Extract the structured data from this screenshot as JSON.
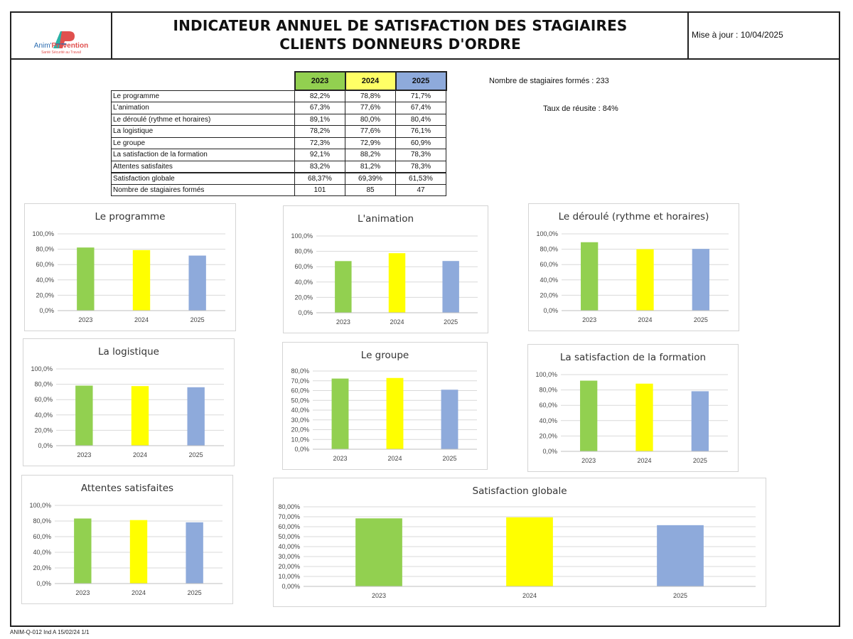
{
  "header": {
    "logo": {
      "brand": "Anim'",
      "brand_accent": "Prévention",
      "tagline": "Santé Sécurité au Travail"
    },
    "title_line1": "INDICATEUR ANNUEL DE SATISFACTION DES STAGIAIRES",
    "title_line2": "CLIENTS DONNEURS D'ORDRE",
    "update_label": "Mise à jour : 10/04/2025"
  },
  "summary": {
    "headers": [
      "2023",
      "2024",
      "2025"
    ],
    "header_colors": [
      "#92d050",
      "#ffff66",
      "#8eaadb"
    ],
    "rows": [
      {
        "label": "Le programme",
        "values": [
          "82,2%",
          "78,8%",
          "71,7%"
        ]
      },
      {
        "label": "L'animation",
        "values": [
          "67,3%",
          "77,6%",
          "67,4%"
        ]
      },
      {
        "label": "Le déroulé (rythme et horaires)",
        "values": [
          "89,1%",
          "80,0%",
          "80,4%"
        ]
      },
      {
        "label": "La logistique",
        "values": [
          "78,2%",
          "77,6%",
          "76,1%"
        ]
      },
      {
        "label": "Le groupe",
        "values": [
          "72,3%",
          "72,9%",
          "60,9%"
        ]
      },
      {
        "label": "La satisfaction de la  formation",
        "values": [
          "92,1%",
          "88,2%",
          "78,3%"
        ]
      },
      {
        "label": "Attentes satisfaites",
        "values": [
          "83,2%",
          "81,2%",
          "78,3%"
        ]
      },
      {
        "label": "Satisfaction globale",
        "values": [
          "68,37%",
          "69,39%",
          "61,53%"
        ]
      },
      {
        "label": "Nombre de stagiaires formés",
        "values": [
          "101",
          "85",
          "47"
        ]
      }
    ]
  },
  "stats": {
    "trained_label": "Nombre de stagiaires formés :",
    "trained_value": "233",
    "success_label": "Taux de réusite :",
    "success_value": "84%"
  },
  "footer": {
    "reference": "ANIM-Q-012 Ind A 15/02/24 1/1"
  },
  "chart_data": [
    {
      "type": "bar",
      "title": "Le programme",
      "categories": [
        "2023",
        "2024",
        "2025"
      ],
      "values": [
        82.2,
        78.8,
        71.7
      ],
      "colors": [
        "#92d050",
        "#ffff00",
        "#8eaadb"
      ],
      "ylim": [
        0,
        100
      ],
      "yticks": [
        "0,0%",
        "20,0%",
        "40,0%",
        "60,0%",
        "80,0%",
        "100,0%"
      ],
      "grid": true
    },
    {
      "type": "bar",
      "title": "L'animation",
      "categories": [
        "2023",
        "2024",
        "2025"
      ],
      "values": [
        67.3,
        77.6,
        67.4
      ],
      "colors": [
        "#92d050",
        "#ffff00",
        "#8eaadb"
      ],
      "ylim": [
        0,
        100
      ],
      "yticks": [
        "0,0%",
        "20,0%",
        "40,0%",
        "60,0%",
        "80,0%",
        "100,0%"
      ],
      "grid": true
    },
    {
      "type": "bar",
      "title": "Le déroulé (rythme et horaires)",
      "categories": [
        "2023",
        "2024",
        "2025"
      ],
      "values": [
        89.1,
        80.0,
        80.4
      ],
      "colors": [
        "#92d050",
        "#ffff00",
        "#8eaadb"
      ],
      "ylim": [
        0,
        100
      ],
      "yticks": [
        "0,0%",
        "20,0%",
        "40,0%",
        "60,0%",
        "80,0%",
        "100,0%"
      ],
      "grid": true
    },
    {
      "type": "bar",
      "title": "La logistique",
      "categories": [
        "2023",
        "2024",
        "2025"
      ],
      "values": [
        78.2,
        77.6,
        76.1
      ],
      "colors": [
        "#92d050",
        "#ffff00",
        "#8eaadb"
      ],
      "ylim": [
        0,
        100
      ],
      "yticks": [
        "0,0%",
        "20,0%",
        "40,0%",
        "60,0%",
        "80,0%",
        "100,0%"
      ],
      "grid": true
    },
    {
      "type": "bar",
      "title": "Le groupe",
      "categories": [
        "2023",
        "2024",
        "2025"
      ],
      "values": [
        72.3,
        72.9,
        60.9
      ],
      "colors": [
        "#92d050",
        "#ffff00",
        "#8eaadb"
      ],
      "ylim": [
        0,
        80
      ],
      "yticks": [
        "0,0%",
        "10,0%",
        "20,0%",
        "30,0%",
        "40,0%",
        "50,0%",
        "60,0%",
        "70,0%",
        "80,0%"
      ],
      "grid": true
    },
    {
      "type": "bar",
      "title": "La satisfaction de la  formation",
      "categories": [
        "2023",
        "2024",
        "2025"
      ],
      "values": [
        92.1,
        88.2,
        78.3
      ],
      "colors": [
        "#92d050",
        "#ffff00",
        "#8eaadb"
      ],
      "ylim": [
        0,
        100
      ],
      "yticks": [
        "0,0%",
        "20,0%",
        "40,0%",
        "60,0%",
        "80,0%",
        "100,0%"
      ],
      "grid": true
    },
    {
      "type": "bar",
      "title": "Attentes satisfaites",
      "categories": [
        "2023",
        "2024",
        "2025"
      ],
      "values": [
        83.2,
        81.2,
        78.3
      ],
      "colors": [
        "#92d050",
        "#ffff00",
        "#8eaadb"
      ],
      "ylim": [
        0,
        100
      ],
      "yticks": [
        "0,0%",
        "20,0%",
        "40,0%",
        "60,0%",
        "80,0%",
        "100,0%"
      ],
      "grid": true
    },
    {
      "type": "bar",
      "title": "Satisfaction globale",
      "categories": [
        "2023",
        "2024",
        "2025"
      ],
      "values": [
        68.37,
        69.39,
        61.53
      ],
      "colors": [
        "#92d050",
        "#ffff00",
        "#8eaadb"
      ],
      "ylim": [
        0,
        80
      ],
      "yticks": [
        "0,00%",
        "10,00%",
        "20,00%",
        "30,00%",
        "40,00%",
        "50,00%",
        "60,00%",
        "70,00%",
        "80,00%"
      ],
      "grid": true
    }
  ]
}
